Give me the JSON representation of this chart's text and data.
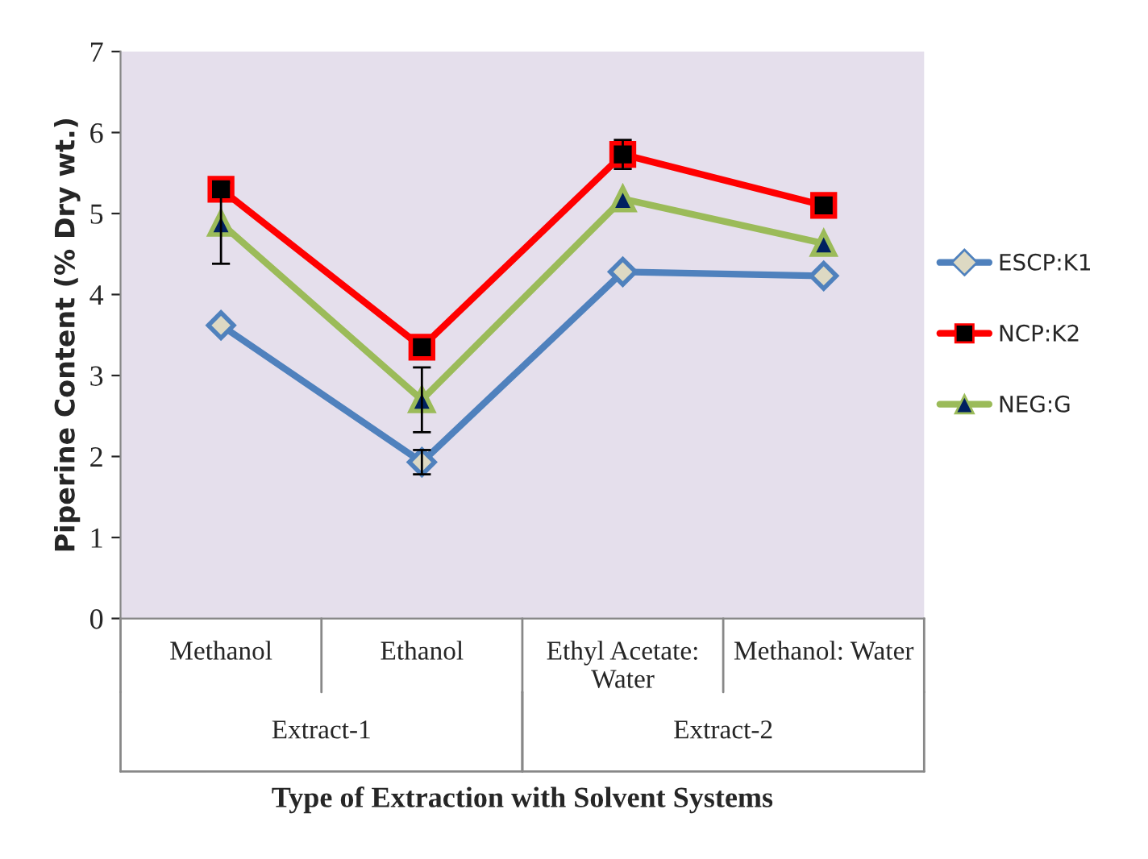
{
  "chart_data": {
    "type": "line",
    "categories": [
      "Methanol",
      "Ethanol",
      "Ethyl Acetate:\nWater",
      "Methanol: Water"
    ],
    "xlabel": "Type of Extraction with Solvent Systems",
    "ylabel": "Piperine Content (% Dry wt.)",
    "ylim": [
      0,
      7
    ],
    "yticks": [
      0,
      1,
      2,
      3,
      4,
      5,
      6,
      7
    ],
    "annotations": [
      "Extract-1",
      "Extract-2"
    ],
    "grid": false,
    "legend": "right",
    "series": [
      {
        "name": "ESCP:K1",
        "color": "#4f81bd",
        "marker": "diamond",
        "values": [
          3.62,
          1.93,
          4.28,
          4.23
        ],
        "errors": [
          null,
          0.15,
          null,
          null
        ]
      },
      {
        "name": "NCP:K2",
        "color": "#ff0000",
        "marker": "square",
        "values": [
          5.3,
          3.35,
          5.73,
          5.1
        ],
        "errors": [
          null,
          null,
          0.18,
          null
        ]
      },
      {
        "name": "NEG:G",
        "color": "#9bbb59",
        "marker": "triangle",
        "values": [
          4.88,
          2.7,
          5.18,
          4.63
        ],
        "errors": [
          0.5,
          0.4,
          null,
          null
        ]
      }
    ]
  }
}
